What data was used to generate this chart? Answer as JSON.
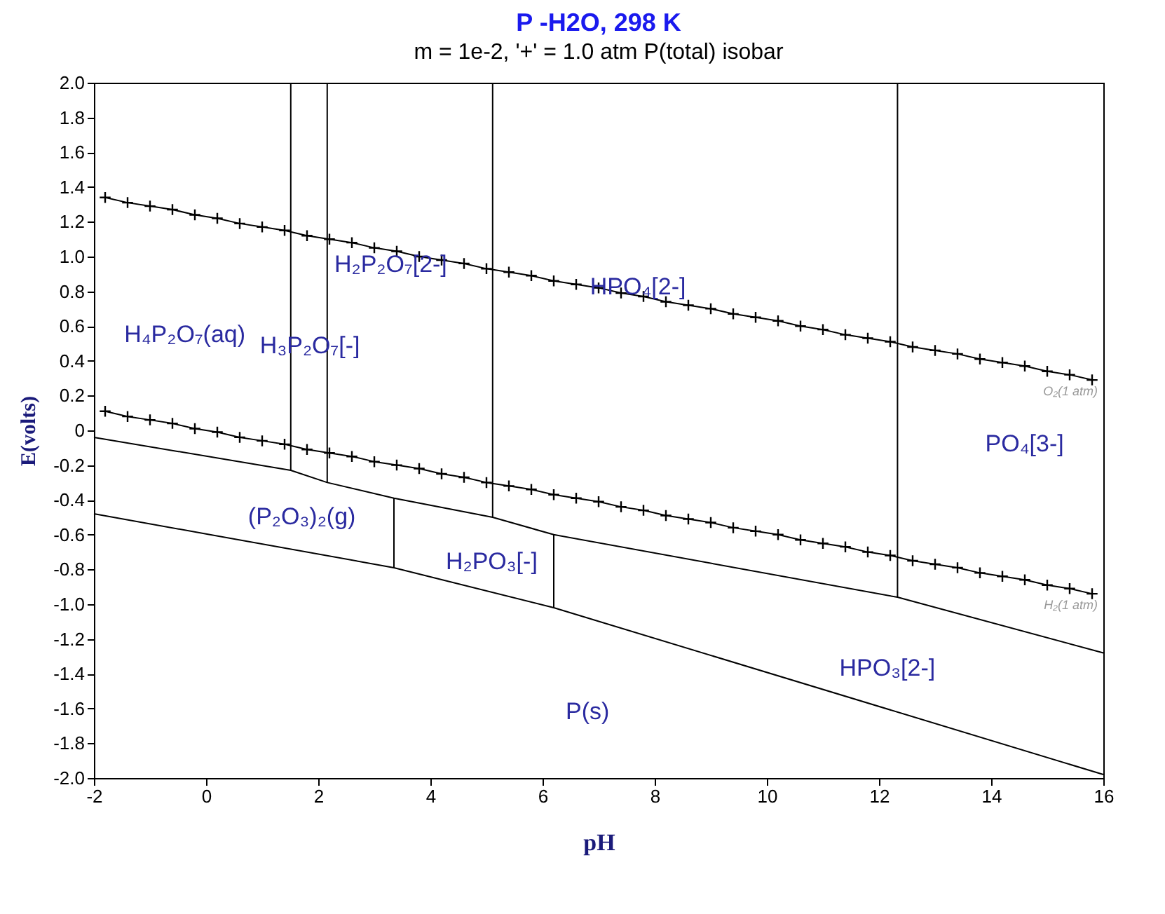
{
  "chart_data": {
    "type": "line",
    "title": "P -H2O, 298 K",
    "subtitle": "m = 1e-2, '+' = 1.0 atm P(total) isobar",
    "xlabel": "pH",
    "ylabel": "E(volts)",
    "xlim": [
      -2,
      16
    ],
    "xticks": [
      -2,
      0,
      2,
      4,
      6,
      8,
      10,
      12,
      14,
      16
    ],
    "ylim": [
      -2,
      2
    ],
    "yticks": [
      {
        "value": -2,
        "label": "-2.0"
      },
      -1.8,
      -1.6,
      -1.4,
      -1.2,
      {
        "value": -1,
        "label": "-1.0"
      },
      -0.8,
      -0.6,
      -0.4,
      -0.2,
      0,
      0.2,
      0.4,
      0.6,
      0.8,
      {
        "value": 1,
        "label": "1.0"
      },
      1.2,
      1.4,
      1.6,
      1.8,
      {
        "value": 2,
        "label": "2.0"
      }
    ],
    "grid": false,
    "legend": false,
    "series": [
      {
        "name": "O₂(1 atm)",
        "color": "#000000",
        "marker": "cross",
        "x": [
          -1.8,
          -1.4,
          -1.0,
          -0.6,
          -0.2,
          0.2,
          0.6,
          1.0,
          1.4,
          1.8,
          2.2,
          2.6,
          3.0,
          3.4,
          3.8,
          4.2,
          4.6,
          5.0,
          5.4,
          5.8,
          6.2,
          6.6,
          7.0,
          7.4,
          7.8,
          8.2,
          8.6,
          9.0,
          9.4,
          9.8,
          10.2,
          10.6,
          11.0,
          11.4,
          11.8,
          12.2,
          12.6,
          13.0,
          13.4,
          13.8,
          14.2,
          14.6,
          15.0,
          15.4,
          15.8
        ],
        "values": [
          1.34,
          1.31,
          1.29,
          1.27,
          1.24,
          1.22,
          1.19,
          1.17,
          1.15,
          1.12,
          1.1,
          1.08,
          1.05,
          1.03,
          1.0,
          0.98,
          0.96,
          0.93,
          0.91,
          0.89,
          0.86,
          0.84,
          0.82,
          0.79,
          0.77,
          0.74,
          0.72,
          0.7,
          0.67,
          0.65,
          0.63,
          0.6,
          0.58,
          0.55,
          0.53,
          0.51,
          0.48,
          0.46,
          0.44,
          0.41,
          0.39,
          0.37,
          0.34,
          0.32,
          0.29
        ]
      },
      {
        "name": "H₂(1 atm)",
        "color": "#000000",
        "marker": "cross",
        "x": [
          -1.8,
          -1.4,
          -1.0,
          -0.6,
          -0.2,
          0.2,
          0.6,
          1.0,
          1.4,
          1.8,
          2.2,
          2.6,
          3.0,
          3.4,
          3.8,
          4.2,
          4.6,
          5.0,
          5.4,
          5.8,
          6.2,
          6.6,
          7.0,
          7.4,
          7.8,
          8.2,
          8.6,
          9.0,
          9.4,
          9.8,
          10.2,
          10.6,
          11.0,
          11.4,
          11.8,
          12.2,
          12.6,
          13.0,
          13.4,
          13.8,
          14.2,
          14.6,
          15.0,
          15.4,
          15.8
        ],
        "values": [
          0.11,
          0.08,
          0.06,
          0.04,
          0.01,
          -0.01,
          -0.04,
          -0.06,
          -0.08,
          -0.11,
          -0.13,
          -0.15,
          -0.18,
          -0.2,
          -0.22,
          -0.25,
          -0.27,
          -0.3,
          -0.32,
          -0.34,
          -0.37,
          -0.39,
          -0.41,
          -0.44,
          -0.46,
          -0.49,
          -0.51,
          -0.53,
          -0.56,
          -0.58,
          -0.6,
          -0.63,
          -0.65,
          -0.67,
          -0.7,
          -0.72,
          -0.75,
          -0.77,
          -0.79,
          -0.82,
          -0.84,
          -0.86,
          -0.89,
          -0.91,
          -0.94
        ]
      },
      {
        "color": "#000000",
        "x": [
          -2,
          1.51,
          2.16,
          3.35,
          5.11,
          6.2,
          12.33,
          16
        ],
        "values": [
          -0.04,
          -0.23,
          -0.3,
          -0.39,
          -0.5,
          -0.6,
          -0.96,
          -1.28
        ]
      },
      {
        "color": "#000000",
        "x": [
          -2,
          3.35,
          6.2,
          16
        ],
        "values": [
          -0.48,
          -0.79,
          -1.02,
          -1.98
        ]
      },
      {
        "color": "#000000",
        "x": [
          1.51,
          1.51
        ],
        "values": [
          2,
          -0.23
        ]
      },
      {
        "color": "#000000",
        "x": [
          2.16,
          2.16
        ],
        "values": [
          2,
          -0.3
        ]
      },
      {
        "color": "#000000",
        "x": [
          5.11,
          5.11
        ],
        "values": [
          2,
          -0.5
        ]
      },
      {
        "color": "#000000",
        "x": [
          12.33,
          12.33
        ],
        "values": [
          2,
          -0.96
        ]
      },
      {
        "color": "#000000",
        "x": [
          3.35,
          3.35
        ],
        "values": [
          -0.39,
          -0.79
        ]
      },
      {
        "color": "#000000",
        "x": [
          6.2,
          6.2
        ],
        "values": [
          -0.6,
          -1.02
        ]
      }
    ],
    "annotations": [
      "H₄P₂O₇(aq)",
      "H₃P₂O₇[-]",
      "H₂P₂O₇[2-]",
      "HPO₄[2-]",
      "PO₄[3-]",
      "(P₂O₃)₂(g)",
      "H₂PO₃[-]",
      "HPO₃[2-]",
      "P(s)"
    ]
  }
}
